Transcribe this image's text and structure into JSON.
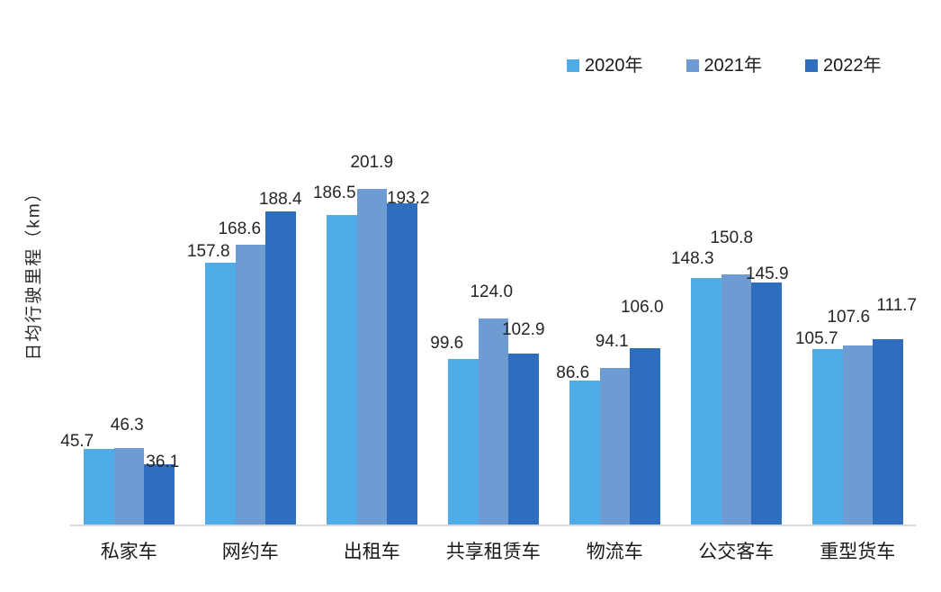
{
  "page": {
    "background": "#ffffff"
  },
  "chart_data": {
    "type": "bar",
    "title": "",
    "xlabel": "",
    "ylabel": "日均行驶里程（km）",
    "categories": [
      "私家车",
      "网约车",
      "出租车",
      "共享租赁车",
      "物流车",
      "公交客车",
      "重型货车"
    ],
    "series": [
      {
        "name": "2020年",
        "color": "#4FACE8",
        "values": [
          45.7,
          157.8,
          186.5,
          99.6,
          86.6,
          148.3,
          105.7
        ]
      },
      {
        "name": "2021年",
        "color": "#6D9BD2",
        "values": [
          46.3,
          168.6,
          201.9,
          124.0,
          94.1,
          150.8,
          107.6
        ]
      },
      {
        "name": "2022年",
        "color": "#2F6EBE",
        "values": [
          36.1,
          188.4,
          193.2,
          102.9,
          106.0,
          145.9,
          111.7
        ]
      }
    ],
    "ylim": [
      0,
      240
    ],
    "grid": false,
    "y_axis_ticks_visible": false,
    "legend_position": "top-right",
    "value_label_decimals": 1,
    "axis_line_color": "#d9d9d9",
    "text_color": "#262626",
    "label_offsets": [
      [
        [
          -24,
          -1
        ],
        [
          -13,
          3
        ],
        [
          -8,
          15
        ],
        [
          -18,
          8
        ],
        [
          -13,
          -1
        ],
        [
          -15,
          12
        ],
        [
          -12,
          2
        ]
      ],
      [
        [
          -2,
          16
        ],
        [
          -12,
          8
        ],
        [
          0,
          20
        ],
        [
          -2,
          20
        ],
        [
          -3,
          20
        ],
        [
          -5,
          31
        ],
        [
          -10,
          22
        ]
      ],
      [
        [
          4,
          -7
        ],
        [
          0,
          4
        ],
        [
          7,
          -4
        ],
        [
          0,
          17
        ],
        [
          -3,
          36
        ],
        [
          1,
          0
        ],
        [
          10,
          28
        ]
      ]
    ]
  }
}
